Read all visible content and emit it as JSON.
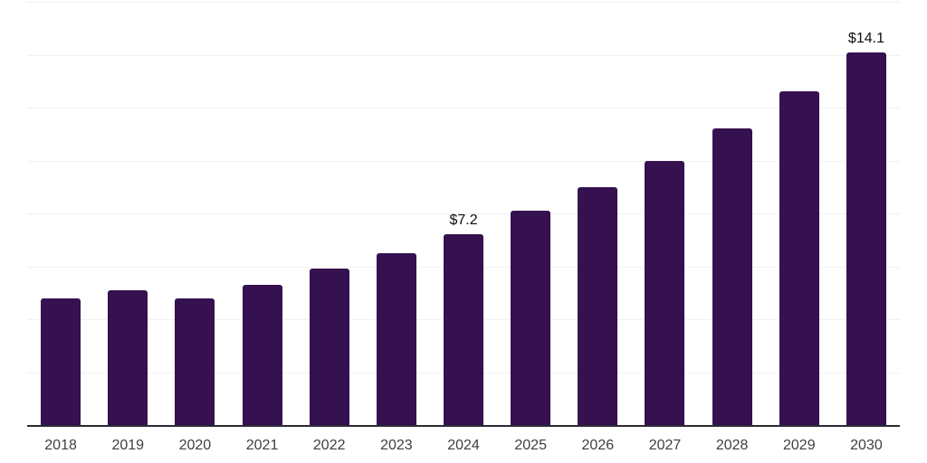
{
  "chart_data": {
    "type": "bar",
    "title": "",
    "xlabel": "",
    "ylabel": "",
    "categories": [
      "2018",
      "2019",
      "2020",
      "2021",
      "2022",
      "2023",
      "2024",
      "2025",
      "2026",
      "2027",
      "2028",
      "2029",
      "2030"
    ],
    "values": [
      4.8,
      5.1,
      4.8,
      5.3,
      5.9,
      6.5,
      7.2,
      8.1,
      9.0,
      10.0,
      11.2,
      12.6,
      14.1
    ],
    "data_labels": [
      "",
      "",
      "",
      "",
      "",
      "",
      "$7.2",
      "",
      "",
      "",
      "",
      "",
      "$14.1"
    ],
    "ylim": [
      0,
      16
    ],
    "gridline_step": 2,
    "grid": true,
    "legend_position": "none",
    "bar_color": "#351150",
    "axis_line_color": "#2a2a33",
    "gridline_color": "#f1f1f4",
    "tick_label_color": "#3e3e3e",
    "data_label_color": "#0f0f0f"
  }
}
